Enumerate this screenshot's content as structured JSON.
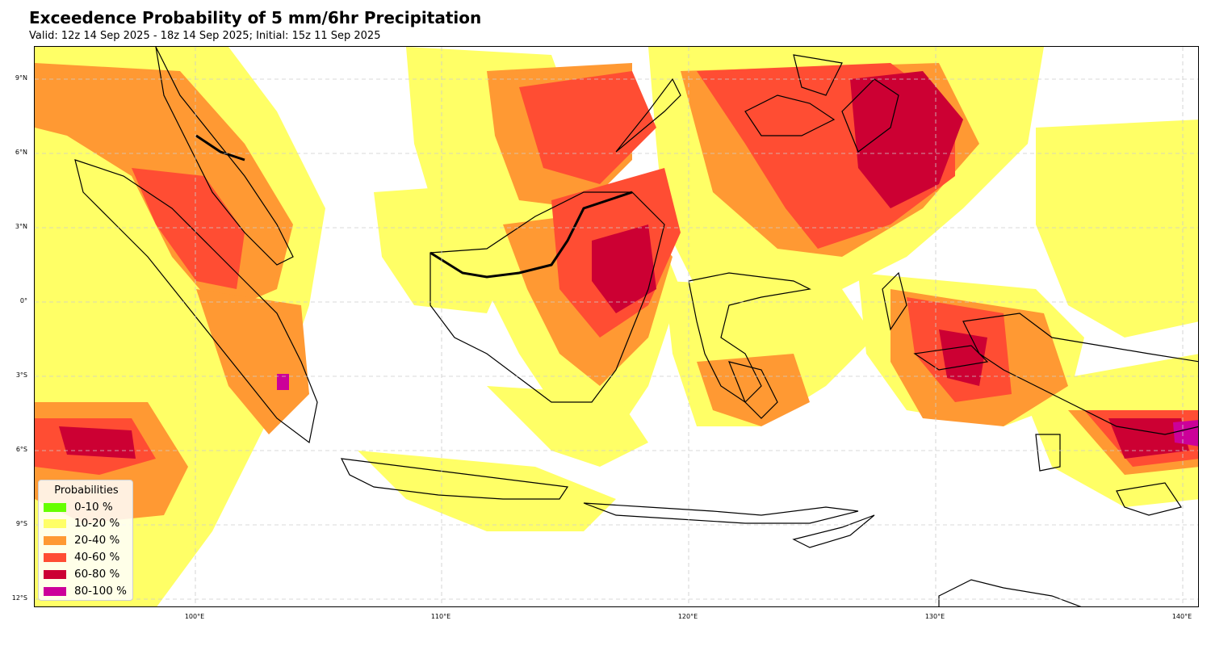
{
  "header": {
    "title": "Exceedence Probability of 5 mm/6hr Precipitation",
    "subtitle": "Valid: 12z 14 Sep 2025 - 18z 14 Sep 2025; Initial: 15z 11 Sep 2025"
  },
  "map": {
    "region": "Indonesia / Maritime Continent",
    "lon_range": [
      93.5,
      141
    ],
    "lat_range": [
      -12.5,
      10.5
    ],
    "gridlines": true,
    "lat_ticks": [
      "9°N",
      "6°N",
      "3°N",
      "0°",
      "3°S",
      "6°S",
      "9°S",
      "12°S"
    ],
    "lon_ticks": [
      "100°E",
      "110°E",
      "120°E",
      "130°E",
      "140°E"
    ],
    "colors": {
      "p10_20": "#ffff66",
      "p20_40": "#ff9933",
      "p40_60": "#ff4d33",
      "p60_80": "#cc0033",
      "p80_100": "#cc0099",
      "coastline": "#000000",
      "grid": "#cccccc"
    }
  },
  "legend": {
    "title": "Probabilities",
    "placement": "lower-left",
    "items": [
      {
        "label": "0-10 %",
        "color": "#66ff00"
      },
      {
        "label": "10-20 %",
        "color": "#ffff66"
      },
      {
        "label": "20-40 %",
        "color": "#ff9933"
      },
      {
        "label": "40-60 %",
        "color": "#ff4d33"
      },
      {
        "label": "60-80 %",
        "color": "#cc0033"
      },
      {
        "label": "80-100 %",
        "color": "#cc0099"
      }
    ]
  }
}
